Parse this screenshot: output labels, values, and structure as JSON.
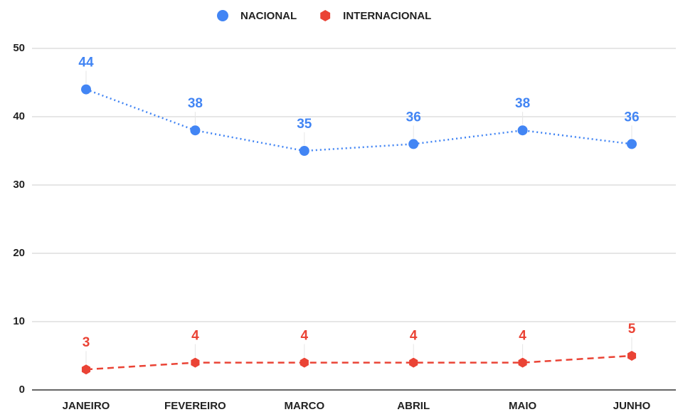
{
  "chart_data": {
    "type": "line",
    "categories": [
      "JANEIRO",
      "FEVEREIRO",
      "MARCO",
      "ABRIL",
      "MAIO",
      "JUNHO"
    ],
    "series": [
      {
        "name": "NACIONAL",
        "color": "#4285f4",
        "line_style": "dotted",
        "marker": "circle",
        "values": [
          44,
          38,
          35,
          36,
          38,
          36
        ]
      },
      {
        "name": "INTERNACIONAL",
        "color": "#ea4335",
        "line_style": "dashed",
        "marker": "hexagon",
        "values": [
          3,
          4,
          4,
          4,
          4,
          5
        ]
      }
    ],
    "ylim": [
      0,
      50
    ],
    "yticks": [
      0,
      10,
      20,
      30,
      40,
      50
    ],
    "grid": true,
    "legend": "top",
    "data_labels": true
  }
}
